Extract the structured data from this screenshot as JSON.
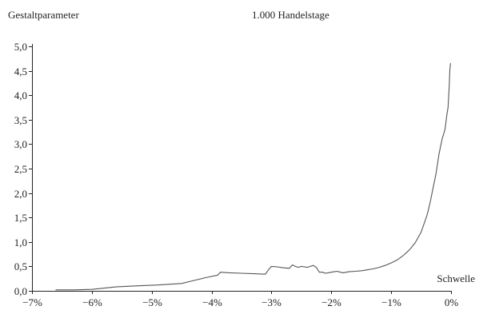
{
  "chart_data": {
    "type": "line",
    "title": "1.000 Handelstage",
    "ylabel": "Gestaltparameter",
    "xlabel": "Schwelle",
    "xlim": [
      -7,
      0
    ],
    "ylim": [
      0,
      5
    ],
    "x_tick_labels": [
      "−7%",
      "−6%",
      "−5%",
      "−4%",
      "−3%",
      "−2%",
      "−1%",
      "0%"
    ],
    "y_tick_labels": [
      "0,0",
      "0,5",
      "1,0",
      "1,5",
      "2,0",
      "2,5",
      "3,0",
      "3,5",
      "4,0",
      "4,5",
      "5,0"
    ],
    "grid": false,
    "series": [
      {
        "color": "#555555",
        "x": [
          -6.6,
          -6.3,
          -6.0,
          -5.6,
          -5.3,
          -4.9,
          -4.5,
          -4.3,
          -4.1,
          -3.9,
          -3.85,
          -3.7,
          -3.5,
          -3.3,
          -3.1,
          -3.05,
          -3.0,
          -2.9,
          -2.8,
          -2.7,
          -2.65,
          -2.6,
          -2.55,
          -2.5,
          -2.45,
          -2.4,
          -2.35,
          -2.3,
          -2.25,
          -2.2,
          -2.15,
          -2.1,
          -2.05,
          -2.0,
          -1.95,
          -1.9,
          -1.85,
          -1.8,
          -1.75,
          -1.7,
          -1.6,
          -1.5,
          -1.4,
          -1.3,
          -1.2,
          -1.1,
          -1.0,
          -0.9,
          -0.8,
          -0.7,
          -0.6,
          -0.5,
          -0.4,
          -0.35,
          -0.3,
          -0.25,
          -0.2,
          -0.15,
          -0.1,
          -0.07,
          -0.05,
          -0.03,
          -0.02,
          -0.01
        ],
        "y": [
          0.02,
          0.02,
          0.03,
          0.08,
          0.1,
          0.12,
          0.15,
          0.21,
          0.27,
          0.32,
          0.38,
          0.37,
          0.36,
          0.35,
          0.34,
          0.43,
          0.5,
          0.49,
          0.47,
          0.46,
          0.53,
          0.5,
          0.48,
          0.5,
          0.49,
          0.48,
          0.5,
          0.52,
          0.48,
          0.38,
          0.38,
          0.36,
          0.37,
          0.38,
          0.39,
          0.4,
          0.38,
          0.37,
          0.38,
          0.39,
          0.4,
          0.41,
          0.43,
          0.45,
          0.48,
          0.52,
          0.57,
          0.63,
          0.72,
          0.83,
          0.98,
          1.2,
          1.55,
          1.8,
          2.1,
          2.4,
          2.8,
          3.1,
          3.3,
          3.6,
          3.75,
          4.2,
          4.5,
          4.65
        ]
      }
    ]
  }
}
